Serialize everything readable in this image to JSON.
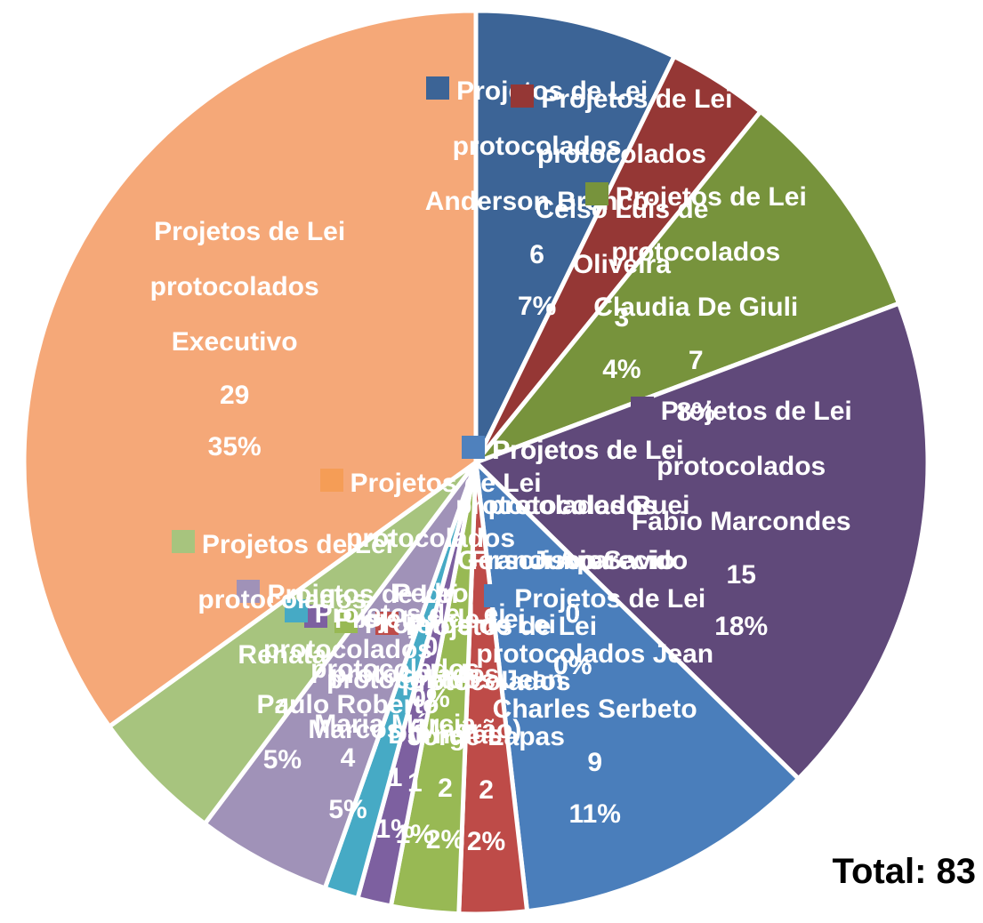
{
  "chart_data": {
    "type": "pie",
    "categories": [
      "Projetos de Lei protocolados Anderson Branco",
      "Projetos de Lei protocolados Celso Luis de Oliveira",
      "Projetos de Lei protocolados Claudia De Giuli",
      "Projetos de Lei protocolados Fabio Marcondes",
      "Projetos de Lei protocolados Francisco Savio",
      "Projetos de Lei protocolados Gerson Aparecido",
      "Projetos de Lei protocolados Ruei Junior",
      "Projetos de Lei protocolados Jean Charles Serbeto",
      "Projetos de Lei protocolados Jorge Lapas",
      "Projetos de Lei protocolados Jean Dornelas",
      "Projetos de Lei protocolados Marcos (Magrão)",
      "Projetos de Lei protocolados Maria Márcia",
      "Projetos de Lei protocolados Pedro",
      "Projetos de Lei protocolados Paulo Roberto",
      "Projetos de Lei protocolados Renata",
      "Projetos de Lei protocolados Executivo"
    ],
    "values": [
      6,
      3,
      7,
      15,
      0,
      0,
      0,
      9,
      2,
      2,
      1,
      1,
      0,
      4,
      4,
      29
    ],
    "value_labels": [
      "7%",
      "4%",
      "8%",
      "18%",
      "0%",
      "0%",
      "0%",
      "11%",
      "2%",
      "2%",
      "1%",
      "1%",
      "0%",
      "5%",
      "5%",
      "35%"
    ],
    "colors": [
      "#3c6496",
      "#953735",
      "#77933c",
      "#60497a",
      "#e46c0a",
      "#31859c",
      "#4f81bd",
      "#4a7ebb",
      "#be4b48",
      "#98b954",
      "#7d60a0",
      "#46aac5",
      "#f59d56",
      "#a092b8",
      "#a7c47e",
      "#f5a878"
    ],
    "annotation": "Total: 83"
  }
}
